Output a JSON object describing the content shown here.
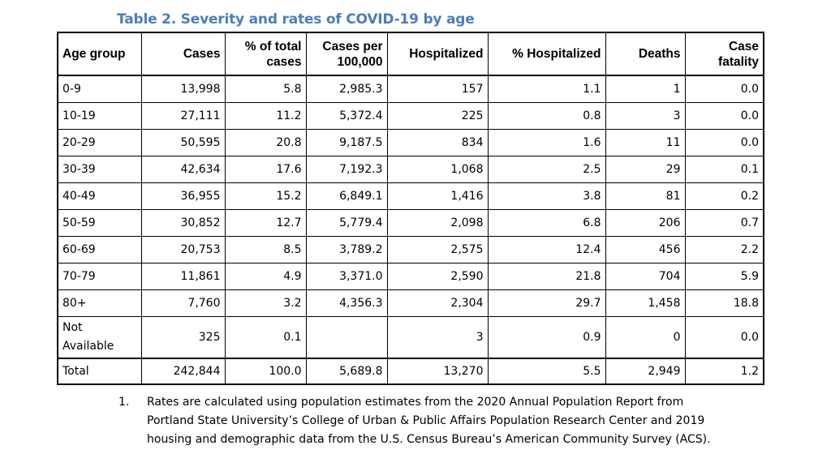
{
  "title": "Table 2. Severity and rates of COVID-19 by age",
  "table": {
    "headers": [
      "Age group",
      "Cases",
      "% of total cases",
      "Cases per 100,000",
      "Hospitalized",
      "% Hospitalized",
      "Deaths",
      "Case fatality"
    ],
    "rows": [
      [
        "0-9",
        "13,998",
        "5.8",
        "2,985.3",
        "157",
        "1.1",
        "1",
        "0.0"
      ],
      [
        "10-19",
        "27,111",
        "11.2",
        "5,372.4",
        "225",
        "0.8",
        "3",
        "0.0"
      ],
      [
        "20-29",
        "50,595",
        "20.8",
        "9,187.5",
        "834",
        "1.6",
        "11",
        "0.0"
      ],
      [
        "30-39",
        "42,634",
        "17.6",
        "7,192.3",
        "1,068",
        "2.5",
        "29",
        "0.1"
      ],
      [
        "40-49",
        "36,955",
        "15.2",
        "6,849.1",
        "1,416",
        "3.8",
        "81",
        "0.2"
      ],
      [
        "50-59",
        "30,852",
        "12.7",
        "5,779.4",
        "2,098",
        "6.8",
        "206",
        "0.7"
      ],
      [
        "60-69",
        "20,753",
        "8.5",
        "3,789.2",
        "2,575",
        "12.4",
        "456",
        "2.2"
      ],
      [
        "70-79",
        "11,861",
        "4.9",
        "3,371.0",
        "2,590",
        "21.8",
        "704",
        "5.9"
      ],
      [
        "80+",
        "7,760",
        "3.2",
        "4,356.3",
        "2,304",
        "29.7",
        "1,458",
        "18.8"
      ],
      [
        "Not Available",
        "325",
        "0.1",
        "",
        "3",
        "0.9",
        "0",
        "0.0"
      ],
      [
        "Total",
        "242,844",
        "100.0",
        "5,689.8",
        "13,270",
        "5.5",
        "2,949",
        "1.2"
      ]
    ]
  },
  "footnote": {
    "number": "1.",
    "text": "Rates are calculated using population estimates from the 2020 Annual Population Report from Portland State University’s College of Urban & Public Affairs Population Research Center and 2019 housing and demographic data from the U.S. Census Bureau’s American Community Survey (ACS)."
  }
}
